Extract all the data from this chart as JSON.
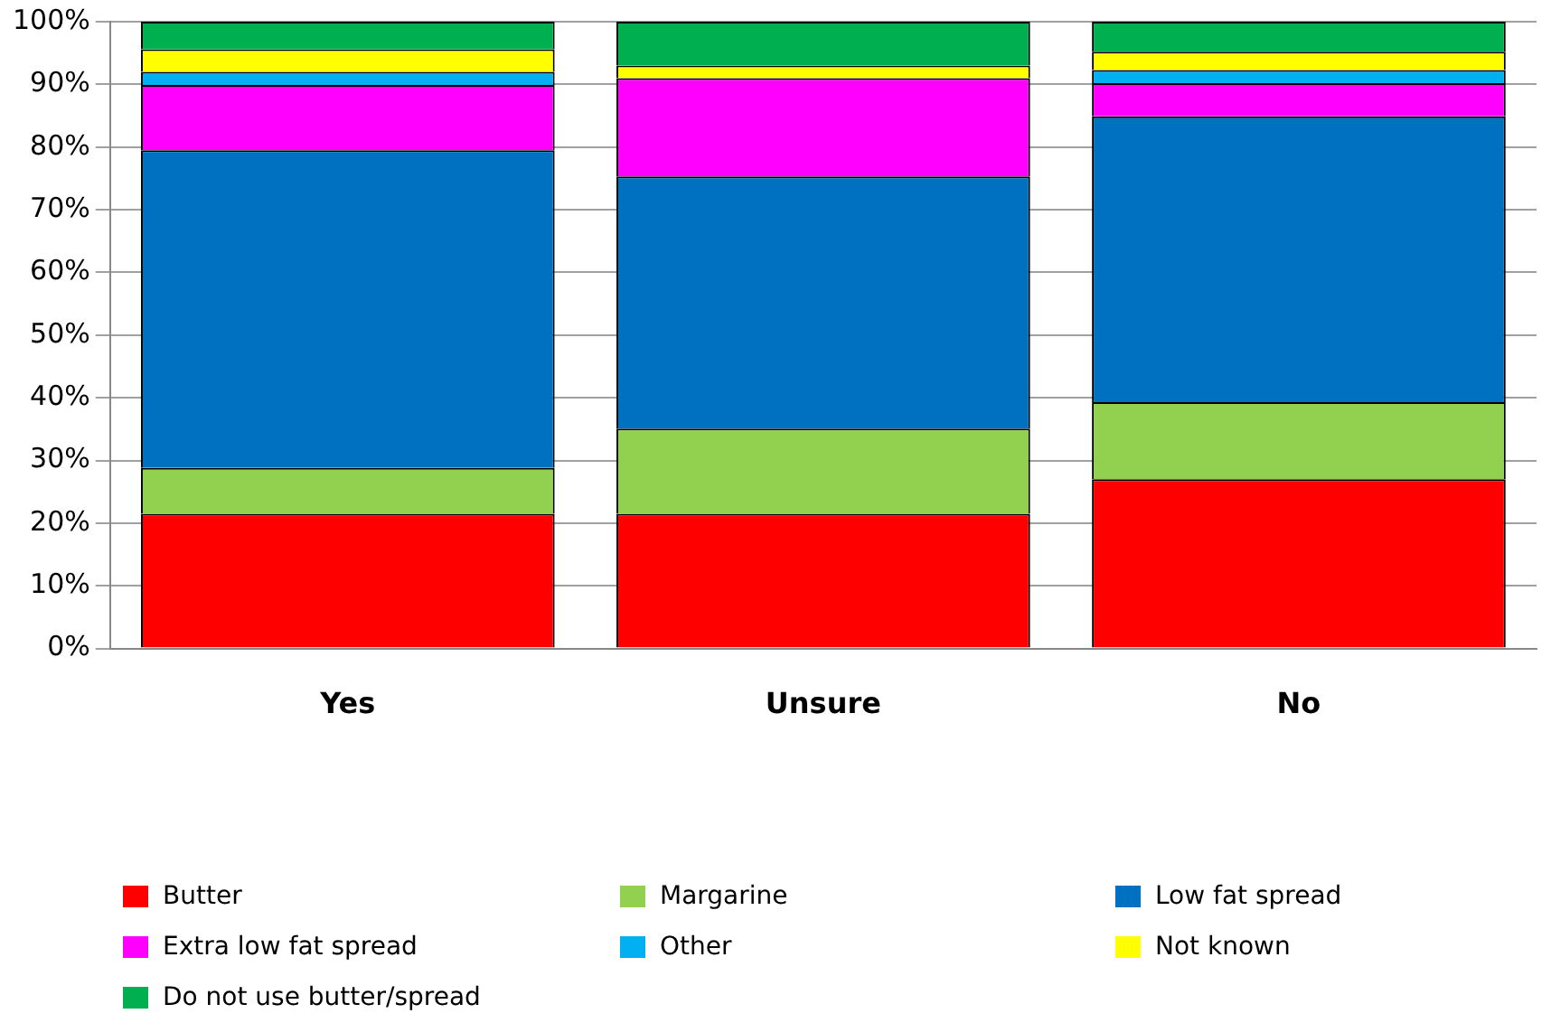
{
  "chart_data": {
    "type": "bar",
    "stacked": true,
    "categories": [
      "Yes",
      "Unsure",
      "No"
    ],
    "ylim": [
      0,
      100
    ],
    "yticks": [
      {
        "value": 0,
        "label": "0%"
      },
      {
        "value": 10,
        "label": "10%"
      },
      {
        "value": 20,
        "label": "20%"
      },
      {
        "value": 30,
        "label": "30%"
      },
      {
        "value": 40,
        "label": "40%"
      },
      {
        "value": 50,
        "label": "50%"
      },
      {
        "value": 60,
        "label": "60%"
      },
      {
        "value": 70,
        "label": "70%"
      },
      {
        "value": 80,
        "label": "80%"
      },
      {
        "value": 90,
        "label": "90%"
      },
      {
        "value": 100,
        "label": "100%"
      }
    ],
    "grid": "y",
    "legend": "bottom",
    "series": [
      {
        "name": "Butter",
        "color": "#ff0000",
        "values": [
          21.5,
          21.5,
          27.0
        ]
      },
      {
        "name": "Margarine",
        "color": "#92d050",
        "values": [
          7.3,
          13.6,
          12.3
        ]
      },
      {
        "name": "Low fat spread",
        "color": "#0070c0",
        "values": [
          50.7,
          40.2,
          45.6
        ]
      },
      {
        "name": "Extra low fat spread",
        "color": "#ff00ff",
        "values": [
          10.4,
          15.7,
          5.3
        ]
      },
      {
        "name": "Other",
        "color": "#00b0f0",
        "values": [
          2.1,
          0,
          2.1
        ]
      },
      {
        "name": "Not known",
        "color": "#ffff00",
        "values": [
          3.6,
          2.0,
          2.9
        ]
      },
      {
        "name": "Do not use butter/spread",
        "color": "#00b050",
        "values": [
          4.4,
          7.0,
          4.8
        ]
      }
    ]
  }
}
